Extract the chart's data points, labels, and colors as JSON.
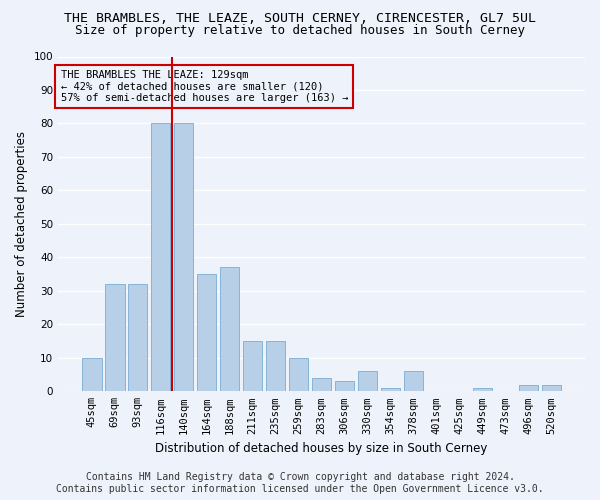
{
  "title": "THE BRAMBLES, THE LEAZE, SOUTH CERNEY, CIRENCESTER, GL7 5UL",
  "subtitle": "Size of property relative to detached houses in South Cerney",
  "xlabel": "Distribution of detached houses by size in South Cerney",
  "ylabel": "Number of detached properties",
  "categories": [
    "45sqm",
    "69sqm",
    "93sqm",
    "116sqm",
    "140sqm",
    "164sqm",
    "188sqm",
    "211sqm",
    "235sqm",
    "259sqm",
    "283sqm",
    "306sqm",
    "330sqm",
    "354sqm",
    "378sqm",
    "401sqm",
    "425sqm",
    "449sqm",
    "473sqm",
    "496sqm",
    "520sqm"
  ],
  "values": [
    10,
    32,
    32,
    80,
    80,
    35,
    37,
    15,
    15,
    10,
    4,
    3,
    6,
    1,
    6,
    0,
    0,
    1,
    0,
    2,
    2
  ],
  "bar_color": "#b8cfe8",
  "bar_edgecolor": "#7aacd4",
  "vline_color": "#cc0000",
  "annotation_text": "THE BRAMBLES THE LEAZE: 129sqm\n← 42% of detached houses are smaller (120)\n57% of semi-detached houses are larger (163) →",
  "annotation_box_edgecolor": "#cc0000",
  "ylim": [
    0,
    100
  ],
  "yticks": [
    0,
    10,
    20,
    30,
    40,
    50,
    60,
    70,
    80,
    90,
    100
  ],
  "footnote1": "Contains HM Land Registry data © Crown copyright and database right 2024.",
  "footnote2": "Contains public sector information licensed under the Open Government Licence v3.0.",
  "background_color": "#eef2fa",
  "grid_color": "#ffffff",
  "title_fontsize": 9.5,
  "subtitle_fontsize": 9,
  "label_fontsize": 8.5,
  "tick_fontsize": 7.5,
  "annot_fontsize": 7.5,
  "footnote_fontsize": 7
}
